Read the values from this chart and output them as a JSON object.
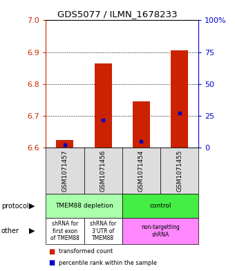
{
  "title": "GDS5077 / ILMN_1678233",
  "samples": [
    "GSM1071457",
    "GSM1071456",
    "GSM1071454",
    "GSM1071455"
  ],
  "bar_values": [
    6.625,
    6.865,
    6.745,
    6.905
  ],
  "bar_base": 6.6,
  "percentile_values": [
    2,
    22,
    5,
    27
  ],
  "ylim": [
    6.6,
    7.0
  ],
  "yticks": [
    6.6,
    6.7,
    6.8,
    6.9,
    7.0
  ],
  "y2ticks": [
    0,
    25,
    50,
    75,
    100
  ],
  "bar_color": "#cc2200",
  "dot_color": "#0000cc",
  "legend_red": "transformed count",
  "legend_blue": "percentile rank within the sample",
  "proto_cells": [
    {
      "cols": [
        0,
        2
      ],
      "label": "TMEM88 depletion",
      "color": "#aaffaa"
    },
    {
      "cols": [
        2,
        4
      ],
      "label": "control",
      "color": "#44ee44"
    }
  ],
  "other_cells": [
    {
      "cols": [
        0,
        1
      ],
      "label": "shRNA for\nfirst exon\nof TMEM88",
      "color": "#ffffff"
    },
    {
      "cols": [
        1,
        2
      ],
      "label": "shRNA for\n3'UTR of\nTMEM88",
      "color": "#ffffff"
    },
    {
      "cols": [
        2,
        4
      ],
      "label": "non-targetting\nshRNA",
      "color": "#ff88ff"
    }
  ]
}
